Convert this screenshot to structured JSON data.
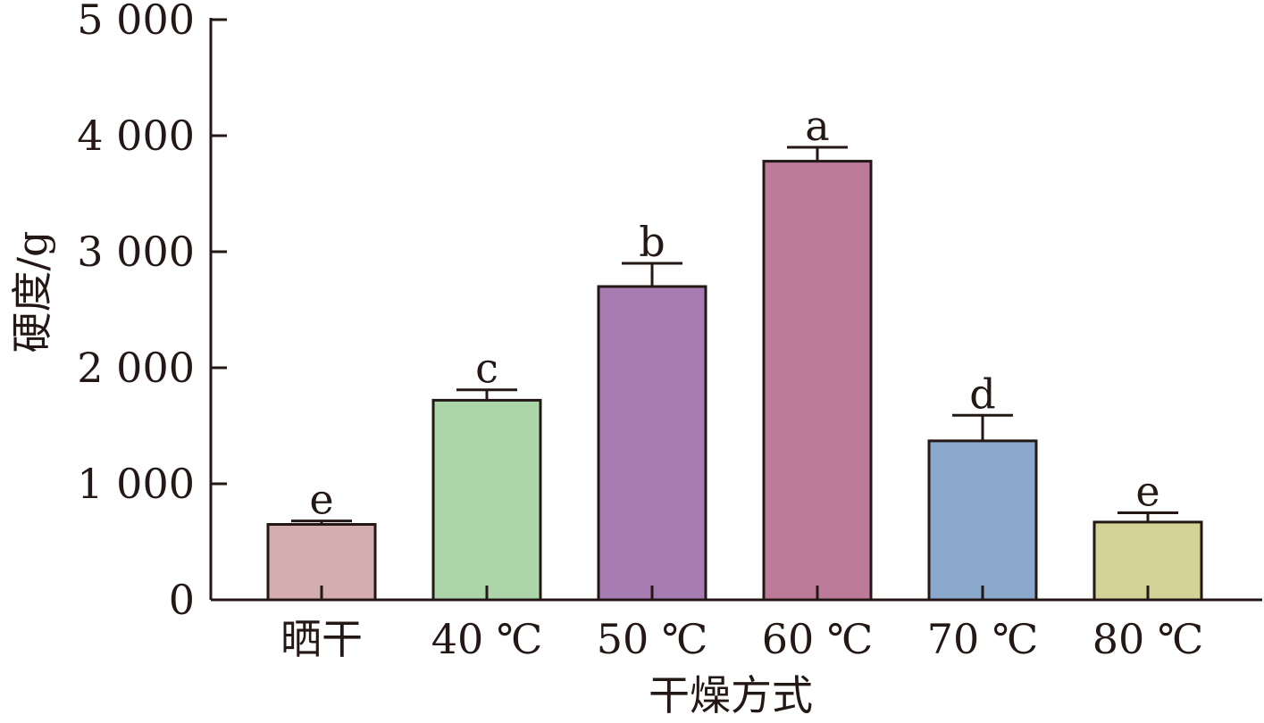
{
  "chart_data": {
    "type": "bar",
    "categories": [
      "晒干",
      "40 ℃",
      "50 ℃",
      "60 ℃",
      "70 ℃",
      "80 ℃"
    ],
    "values": [
      650,
      1720,
      2700,
      3780,
      1370,
      670
    ],
    "errors": [
      30,
      90,
      200,
      120,
      220,
      80
    ],
    "significance": [
      "e",
      "c",
      "b",
      "a",
      "d",
      "e"
    ],
    "colors": [
      "#d4aeae",
      "#acd6a9",
      "#a67cb3",
      "#bb7b99",
      "#8aa8cb",
      "#d3d398"
    ],
    "xlabel": "干燥方式",
    "ylabel": "硬度/g",
    "ylim": [
      0,
      5000
    ],
    "yticks": [
      0,
      1000,
      2000,
      3000,
      4000,
      5000
    ],
    "ytick_labels": [
      "0",
      "1 000",
      "2 000",
      "3 000",
      "4 000",
      "5 000"
    ],
    "grid": false,
    "legend": "none"
  }
}
